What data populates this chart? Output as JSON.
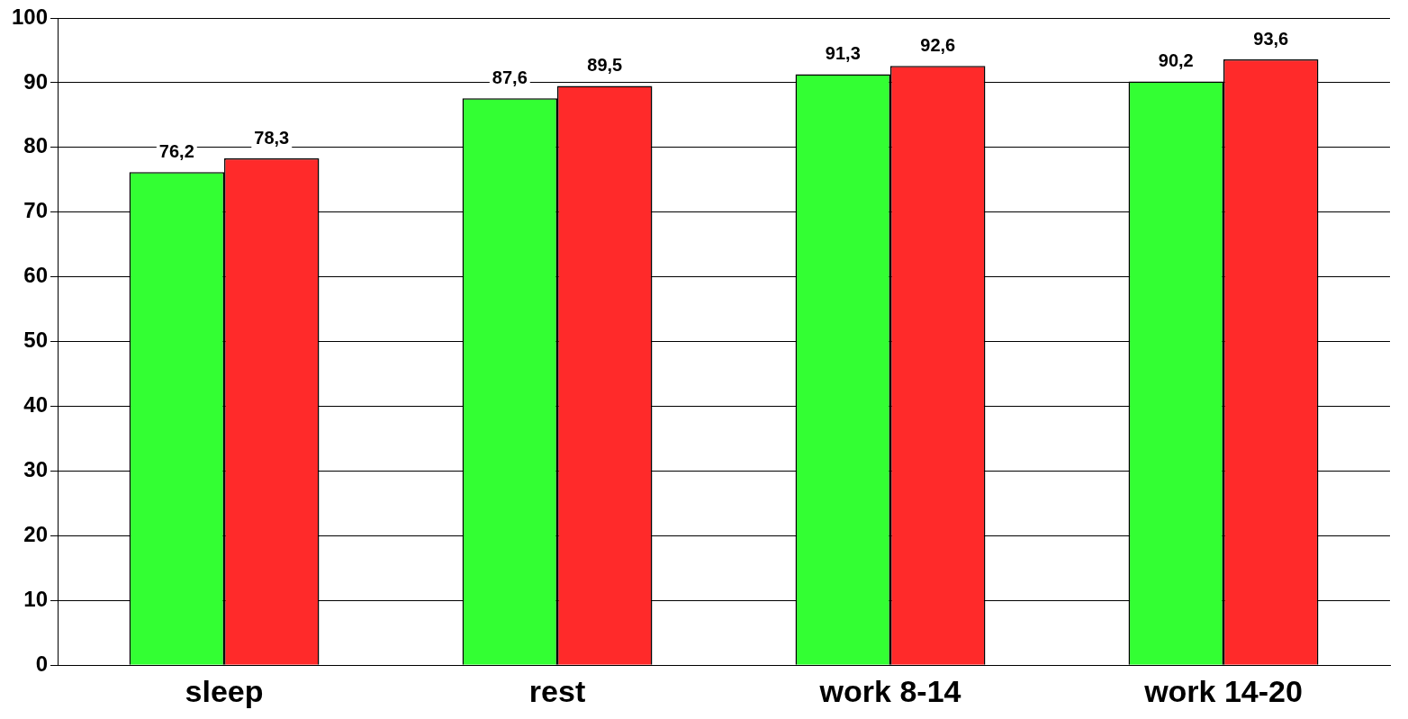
{
  "chart_data": {
    "type": "bar",
    "categories": [
      "sleep",
      "rest",
      "work 8-14",
      "work 14-20"
    ],
    "series": [
      {
        "color": "#33ff33",
        "values": [
          76.2,
          87.6,
          91.3,
          90.2
        ],
        "value_labels": [
          "76,2",
          "87,6",
          "91,3",
          "90,2"
        ]
      },
      {
        "color": "#ff2a2a",
        "values": [
          78.3,
          89.5,
          92.6,
          93.6
        ],
        "value_labels": [
          "78,3",
          "89,5",
          "92,6",
          "93,6"
        ]
      }
    ],
    "ylim": [
      0,
      100
    ],
    "yticks": [
      0,
      10,
      20,
      30,
      40,
      50,
      60,
      70,
      80,
      90,
      100
    ],
    "grid": "y",
    "legend": false
  }
}
